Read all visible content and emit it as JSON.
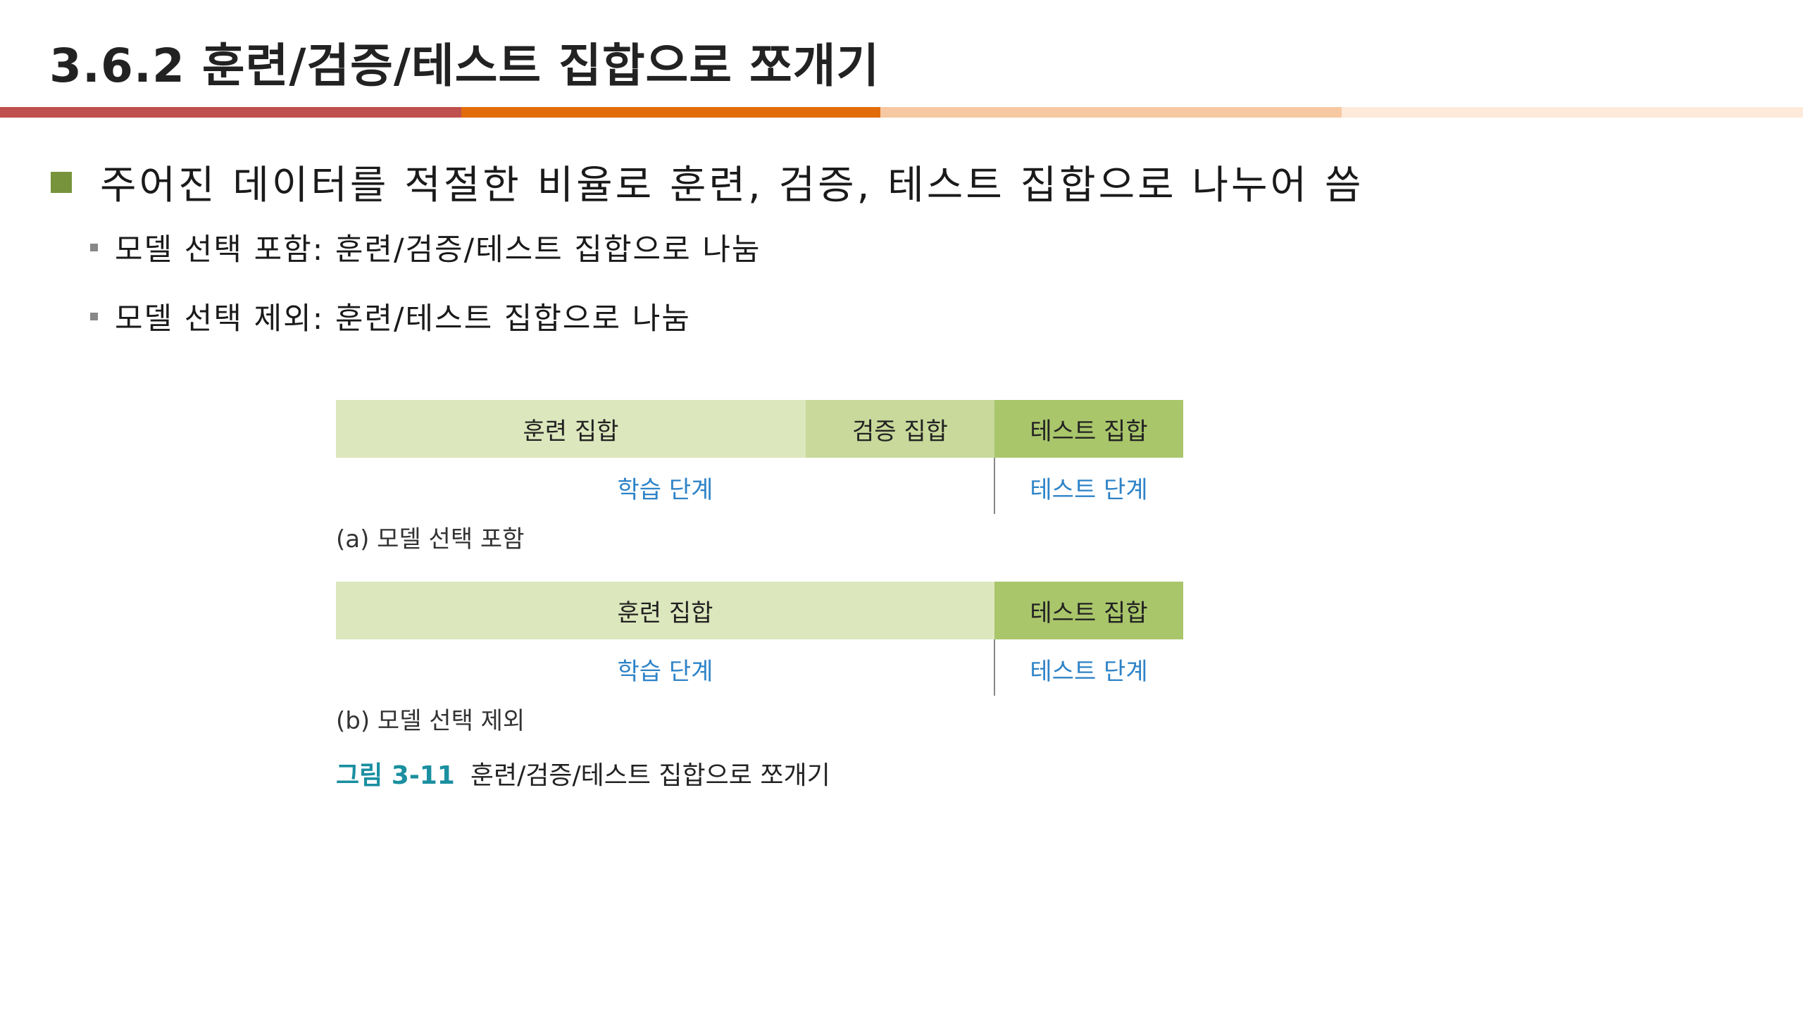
{
  "title": "3.6.2 훈련/검증/테스트 집합으로 쪼개기",
  "colors": {
    "accent_red": "#c0504d",
    "accent_orange": "#e36c0a",
    "accent_peach": "#f7c9a3",
    "accent_light": "#fdeadb",
    "bullet_green": "#77933c",
    "train_green": "#dde7bd",
    "val_green": "#c8d99b",
    "test_green": "#a9c66b",
    "phase_blue": "#2e83c7",
    "caption_teal": "#1a8fa0"
  },
  "bullets": {
    "main": "주어진 데이터를 적절한 비율로 훈련, 검증, 테스트 집합으로 나누어 씀",
    "sub": [
      "모델 선택 포함: 훈련/검증/테스트 집합으로 나눔",
      "모델 선택 제외: 훈련/테스트 집합으로 나눔"
    ]
  },
  "figure": {
    "panel_a": {
      "cells": [
        "훈련 집합",
        "검증 집합",
        "테스트 집합"
      ],
      "phases": [
        "학습 단계",
        "테스트 단계"
      ],
      "caption": "(a) 모델 선택 포함"
    },
    "panel_b": {
      "cells": [
        "훈련 집합",
        "테스트 집합"
      ],
      "phases": [
        "학습 단계",
        "테스트 단계"
      ],
      "caption": "(b) 모델 선택 제외"
    },
    "caption_number": "그림 3-11",
    "caption_title": "훈련/검증/테스트 집합으로 쪼개기"
  }
}
